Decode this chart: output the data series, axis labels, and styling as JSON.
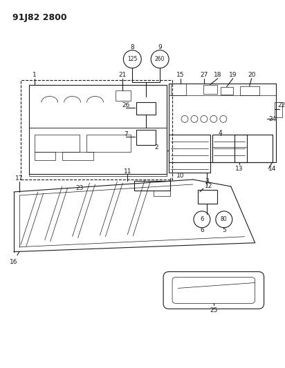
{
  "title": "91J82 2800",
  "bg_color": "#ffffff",
  "line_color": "#1a1a1a",
  "title_fontsize": 9,
  "label_fontsize": 6.5,
  "small_fontsize": 5.5,
  "figsize": [
    4.12,
    5.33
  ],
  "dpi": 100
}
